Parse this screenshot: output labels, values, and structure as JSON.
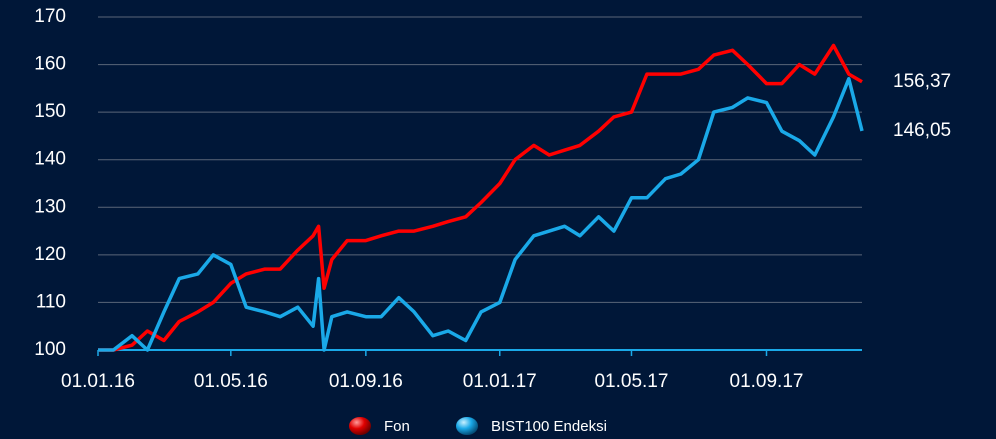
{
  "chart_data": {
    "type": "line",
    "x": [
      "01.01.16",
      "15.01.16",
      "01.02.16",
      "15.02.16",
      "01.03.16",
      "15.03.16",
      "01.04.16",
      "15.04.16",
      "01.05.16",
      "15.05.16",
      "01.06.16",
      "15.06.16",
      "01.07.16",
      "15.07.16",
      "20.07.16",
      "25.07.16",
      "01.08.16",
      "15.08.16",
      "01.09.16",
      "15.09.16",
      "01.10.16",
      "15.10.16",
      "01.11.16",
      "15.11.16",
      "01.12.16",
      "15.12.16",
      "01.01.17",
      "15.01.17",
      "01.02.17",
      "15.02.17",
      "01.03.17",
      "15.03.17",
      "01.04.17",
      "15.04.17",
      "01.05.17",
      "15.05.17",
      "01.06.17",
      "15.06.17",
      "01.07.17",
      "15.07.17",
      "01.08.17",
      "15.08.17",
      "01.09.17",
      "15.09.17",
      "01.10.17",
      "15.10.17",
      "01.11.17",
      "15.11.17",
      "27.11.17"
    ],
    "series": [
      {
        "name": "Fon",
        "color": "#ff0000",
        "values": [
          100,
          100,
          101,
          104,
          102,
          106,
          108,
          110,
          114,
          116,
          117,
          117,
          121,
          124,
          126,
          113,
          119,
          123,
          123,
          124,
          125,
          125,
          126,
          127,
          128,
          131,
          135,
          140,
          143,
          141,
          142,
          143,
          146,
          149,
          150,
          158,
          158,
          158,
          159,
          162,
          163,
          160,
          156,
          156,
          160,
          158,
          164,
          158,
          156.37
        ]
      },
      {
        "name": "BIST100 Endeksi",
        "color": "#1aa9e8",
        "values": [
          100,
          100,
          103,
          100,
          108,
          115,
          116,
          120,
          118,
          109,
          108,
          107,
          109,
          105,
          115,
          100,
          107,
          108,
          107,
          107,
          111,
          108,
          103,
          104,
          102,
          108,
          110,
          119,
          124,
          125,
          126,
          124,
          128,
          125,
          132,
          132,
          136,
          137,
          140,
          150,
          151,
          153,
          152,
          146,
          144,
          141,
          149,
          157,
          146.05
        ]
      }
    ],
    "annotations": [
      {
        "text": "156,37",
        "value": 156.37
      },
      {
        "text": "146,05",
        "value": 146.05
      }
    ],
    "xlim": [
      "01.01.16",
      "27.11.17"
    ],
    "xticks": [
      "01.01.16",
      "01.05.16",
      "01.09.16",
      "01.01.17",
      "01.05.17",
      "01.09.17"
    ],
    "ylim": [
      100,
      170
    ],
    "yticks": [
      100,
      110,
      120,
      130,
      140,
      150,
      160,
      170
    ],
    "grid": true
  }
}
